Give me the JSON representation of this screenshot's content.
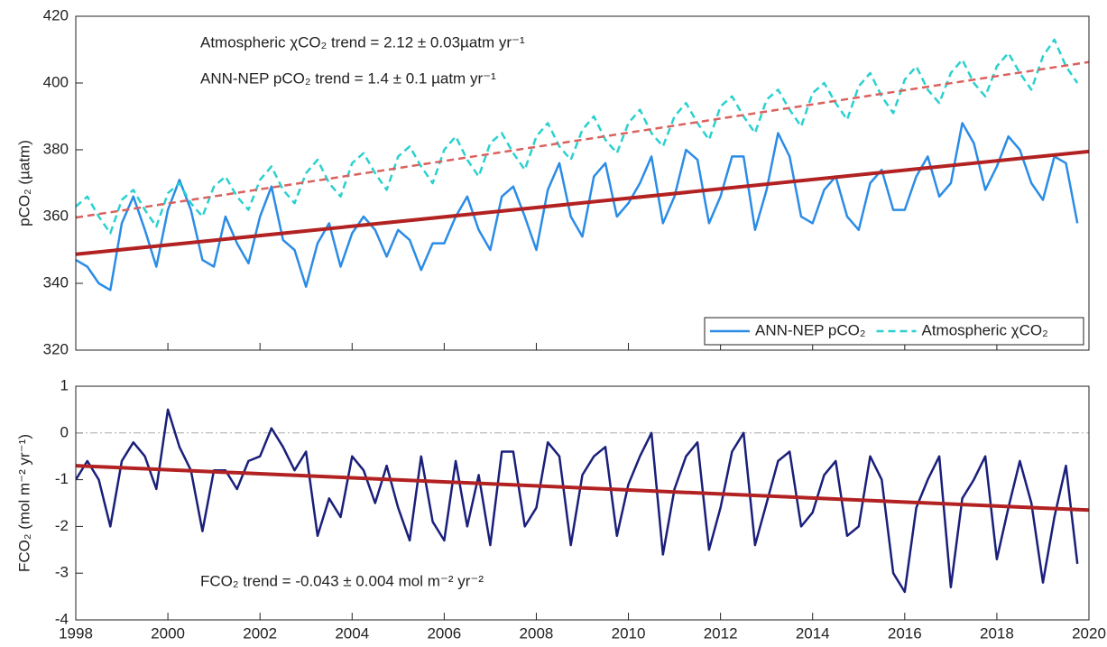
{
  "chart_data": [
    {
      "type": "line",
      "ylabel": "pCO₂ (µatm)",
      "annotations": [
        "Atmospheric χCO₂ trend = 2.12 ± 0.03µatm yr⁻¹",
        "ANN-NEP pCO₂ trend = 1.4 ± 0.1 µatm yr⁻¹"
      ],
      "xlim": [
        1998,
        2020
      ],
      "xticks": [
        1998,
        2000,
        2002,
        2004,
        2006,
        2008,
        2010,
        2012,
        2014,
        2016,
        2018,
        2020
      ],
      "ylim": [
        320,
        420
      ],
      "yticks": [
        320,
        340,
        360,
        380,
        400,
        420
      ],
      "legend": "lower right",
      "x": [
        1998,
        1998.25,
        1998.5,
        1998.75,
        1999,
        1999.25,
        1999.5,
        1999.75,
        2000,
        2000.25,
        2000.5,
        2000.75,
        2001,
        2001.25,
        2001.5,
        2001.75,
        2002,
        2002.25,
        2002.5,
        2002.75,
        2003,
        2003.25,
        2003.5,
        2003.75,
        2004,
        2004.25,
        2004.5,
        2004.75,
        2005,
        2005.25,
        2005.5,
        2005.75,
        2006,
        2006.25,
        2006.5,
        2006.75,
        2007,
        2007.25,
        2007.5,
        2007.75,
        2008,
        2008.25,
        2008.5,
        2008.75,
        2009,
        2009.25,
        2009.5,
        2009.75,
        2010,
        2010.25,
        2010.5,
        2010.75,
        2011,
        2011.25,
        2011.5,
        2011.75,
        2012,
        2012.25,
        2012.5,
        2012.75,
        2013,
        2013.25,
        2013.5,
        2013.75,
        2014,
        2014.25,
        2014.5,
        2014.75,
        2015,
        2015.25,
        2015.5,
        2015.75,
        2016,
        2016.25,
        2016.5,
        2016.75,
        2017,
        2017.25,
        2017.5,
        2017.75,
        2018,
        2018.25,
        2018.5,
        2018.75,
        2019,
        2019.25,
        2019.5,
        2019.75
      ],
      "series": [
        {
          "name": "ANN-NEP pCO₂",
          "color": "#2b8ce6",
          "dashed": false,
          "values": [
            347,
            345,
            340,
            338,
            358,
            366,
            356,
            345,
            362,
            371,
            362,
            347,
            345,
            360,
            352,
            346,
            360,
            369,
            353,
            350,
            339,
            352,
            358,
            345,
            355,
            360,
            356,
            348,
            356,
            353,
            344,
            352,
            352,
            360,
            366,
            356,
            350,
            366,
            369,
            360,
            350,
            368,
            376,
            360,
            354,
            372,
            376,
            360,
            364,
            370,
            378,
            358,
            366,
            380,
            377,
            358,
            366,
            378,
            378,
            356,
            368,
            385,
            378,
            360,
            358,
            368,
            372,
            360,
            356,
            370,
            374,
            362,
            362,
            372,
            378,
            366,
            370,
            388,
            382,
            368,
            375,
            384,
            380,
            370,
            365,
            378,
            376,
            358
          ]
        },
        {
          "name": "Atmospheric χCO₂",
          "color": "#2ad0d0",
          "dashed": true,
          "values": [
            363,
            366,
            360,
            355,
            365,
            368,
            362,
            357,
            367,
            370,
            364,
            360,
            369,
            372,
            366,
            362,
            371,
            375,
            368,
            364,
            373,
            377,
            370,
            366,
            376,
            379,
            373,
            368,
            378,
            381,
            375,
            370,
            380,
            384,
            377,
            372,
            382,
            385,
            379,
            374,
            384,
            388,
            381,
            377,
            386,
            390,
            383,
            379,
            388,
            392,
            385,
            381,
            390,
            394,
            388,
            383,
            393,
            396,
            390,
            385,
            395,
            398,
            392,
            387,
            397,
            400,
            394,
            389,
            399,
            403,
            396,
            391,
            401,
            405,
            398,
            394,
            403,
            407,
            400,
            396,
            405,
            409,
            403,
            398,
            408,
            413,
            405,
            400
          ]
        }
      ],
      "trend_lines": [
        {
          "x": [
            1998,
            2020
          ],
          "values": [
            359.7,
            406.3
          ],
          "color": "#d9625e",
          "dashed": true
        },
        {
          "x": [
            1998,
            2020
          ],
          "values": [
            348.7,
            379.5
          ],
          "color": "#b22222",
          "dashed": false
        }
      ]
    },
    {
      "type": "line",
      "ylabel": "FCO₂ (mol m⁻² yr⁻¹)",
      "annotations": [
        "FCO₂ trend = -0.043 ± 0.004 mol m⁻² yr⁻²"
      ],
      "xlim": [
        1998,
        2020
      ],
      "xticks": [
        1998,
        2000,
        2002,
        2004,
        2006,
        2008,
        2010,
        2012,
        2014,
        2016,
        2018,
        2020
      ],
      "ylim": [
        -4,
        1
      ],
      "yticks": [
        -4,
        -3,
        -2,
        -1,
        0,
        1
      ],
      "hline": 0,
      "x": [
        1998,
        1998.25,
        1998.5,
        1998.75,
        1999,
        1999.25,
        1999.5,
        1999.75,
        2000,
        2000.25,
        2000.5,
        2000.75,
        2001,
        2001.25,
        2001.5,
        2001.75,
        2002,
        2002.25,
        2002.5,
        2002.75,
        2003,
        2003.25,
        2003.5,
        2003.75,
        2004,
        2004.25,
        2004.5,
        2004.75,
        2005,
        2005.25,
        2005.5,
        2005.75,
        2006,
        2006.25,
        2006.5,
        2006.75,
        2007,
        2007.25,
        2007.5,
        2007.75,
        2008,
        2008.25,
        2008.5,
        2008.75,
        2009,
        2009.25,
        2009.5,
        2009.75,
        2010,
        2010.25,
        2010.5,
        2010.75,
        2011,
        2011.25,
        2011.5,
        2011.75,
        2012,
        2012.25,
        2012.5,
        2012.75,
        2013,
        2013.25,
        2013.5,
        2013.75,
        2014,
        2014.25,
        2014.5,
        2014.75,
        2015,
        2015.25,
        2015.5,
        2015.75,
        2016,
        2016.25,
        2016.5,
        2016.75,
        2017,
        2017.25,
        2017.5,
        2017.75,
        2018,
        2018.25,
        2018.5,
        2018.75,
        2019,
        2019.25,
        2019.5,
        2019.75
      ],
      "series": [
        {
          "color": "#1a1f7a",
          "dashed": false,
          "values": [
            -1,
            -0.6,
            -1.0,
            -2.0,
            -0.6,
            -0.2,
            -0.5,
            -1.2,
            0.5,
            -0.3,
            -0.8,
            -2.1,
            -0.8,
            -0.8,
            -1.2,
            -0.6,
            -0.5,
            0.1,
            -0.3,
            -0.8,
            -0.4,
            -2.2,
            -1.4,
            -1.8,
            -0.5,
            -0.8,
            -1.5,
            -0.7,
            -1.6,
            -2.3,
            -0.5,
            -1.9,
            -2.3,
            -0.6,
            -2.0,
            -0.9,
            -2.4,
            -0.4,
            -0.4,
            -2.0,
            -1.6,
            -0.2,
            -0.5,
            -2.4,
            -0.9,
            -0.5,
            -0.3,
            -2.2,
            -1.1,
            -0.5,
            0.0,
            -2.6,
            -1.2,
            -0.5,
            -0.2,
            -2.5,
            -1.6,
            -0.4,
            0.0,
            -2.4,
            -1.5,
            -0.6,
            -0.4,
            -2.0,
            -1.7,
            -0.9,
            -0.6,
            -2.2,
            -2.0,
            -0.5,
            -1.0,
            -3.0,
            -3.4,
            -1.6,
            -1.0,
            -0.5,
            -3.3,
            -1.4,
            -1.0,
            -0.5,
            -2.7,
            -1.6,
            -0.6,
            -1.5,
            -3.2,
            -1.8,
            -0.7,
            -2.8
          ]
        }
      ],
      "trend_lines": [
        {
          "x": [
            1998,
            2020
          ],
          "values": [
            -0.7,
            -1.65
          ],
          "color": "#b22222",
          "dashed": false
        }
      ]
    }
  ]
}
